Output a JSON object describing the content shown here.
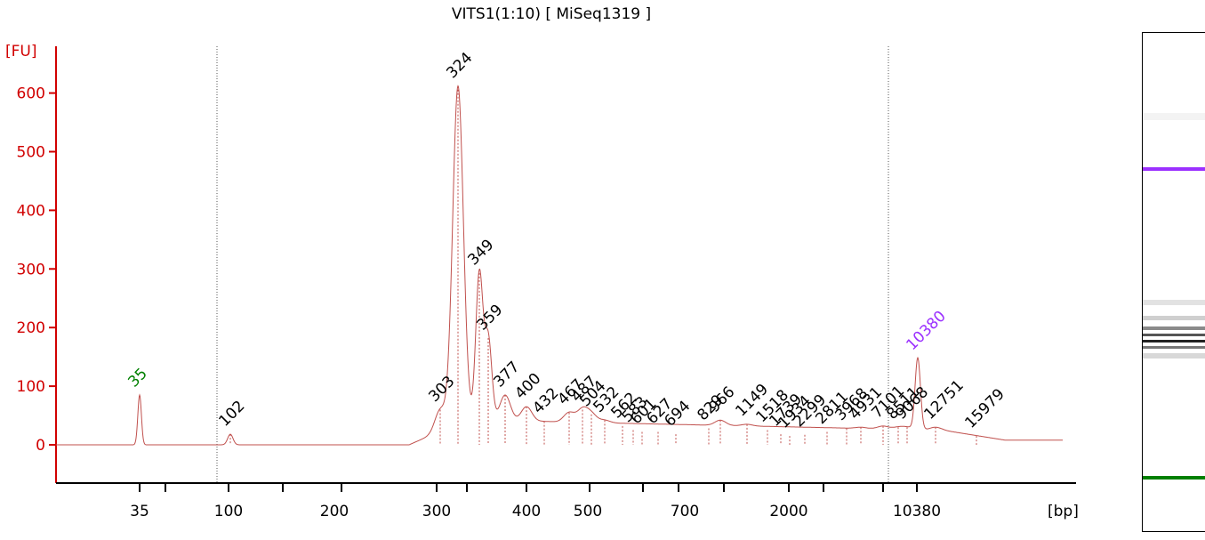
{
  "title": "VITS1(1:10)  [ MiSeq1319 ]",
  "colors": {
    "axis": "#d10000",
    "trace": "#c0504d",
    "lower_marker": "#008000",
    "upper_marker": "#9b30ff",
    "peak_label": "#000000"
  },
  "chart_data": {
    "type": "line",
    "title": "VITS1(1:10)  [ MiSeq1319 ]",
    "ylabel": "[FU]",
    "xlabel": "[bp]",
    "ylim": [
      -65,
      670
    ],
    "yticks": [
      0,
      100,
      200,
      300,
      400,
      500,
      600
    ],
    "xtick_labels": [
      "35",
      "100",
      "200",
      "300",
      "400",
      "500",
      "700",
      "2000",
      "10380"
    ],
    "lower_marker": {
      "label": "35",
      "height": 85
    },
    "upper_marker": {
      "label": "10380",
      "height": 148
    },
    "peaks": [
      {
        "label": "102",
        "height": 18
      },
      {
        "label": "303",
        "height": 60
      },
      {
        "label": "324",
        "height": 612
      },
      {
        "label": "349",
        "height": 293
      },
      {
        "label": "359",
        "height": 182
      },
      {
        "label": "377",
        "height": 85
      },
      {
        "label": "400",
        "height": 65
      },
      {
        "label": "432",
        "height": 40
      },
      {
        "label": "467",
        "height": 55
      },
      {
        "label": "487",
        "height": 60
      },
      {
        "label": "504",
        "height": 52
      },
      {
        "label": "532",
        "height": 42
      },
      {
        "label": "562",
        "height": 32
      },
      {
        "label": "583",
        "height": 25
      },
      {
        "label": "601",
        "height": 22
      },
      {
        "label": "627",
        "height": 22
      },
      {
        "label": "694",
        "height": 18
      },
      {
        "label": "829",
        "height": 28
      },
      {
        "label": "966",
        "height": 42
      },
      {
        "label": "1149",
        "height": 35
      },
      {
        "label": "1518",
        "height": 25
      },
      {
        "label": "1739",
        "height": 18
      },
      {
        "label": "1934",
        "height": 15
      },
      {
        "label": "2299",
        "height": 17
      },
      {
        "label": "2811",
        "height": 22
      },
      {
        "label": "3968",
        "height": 28
      },
      {
        "label": "4931",
        "height": 30
      },
      {
        "label": "7101",
        "height": 32
      },
      {
        "label": "8511",
        "height": 30
      },
      {
        "label": "9068",
        "height": 30
      },
      {
        "label": "12751",
        "height": 30
      },
      {
        "label": "15979",
        "height": 15
      }
    ]
  }
}
